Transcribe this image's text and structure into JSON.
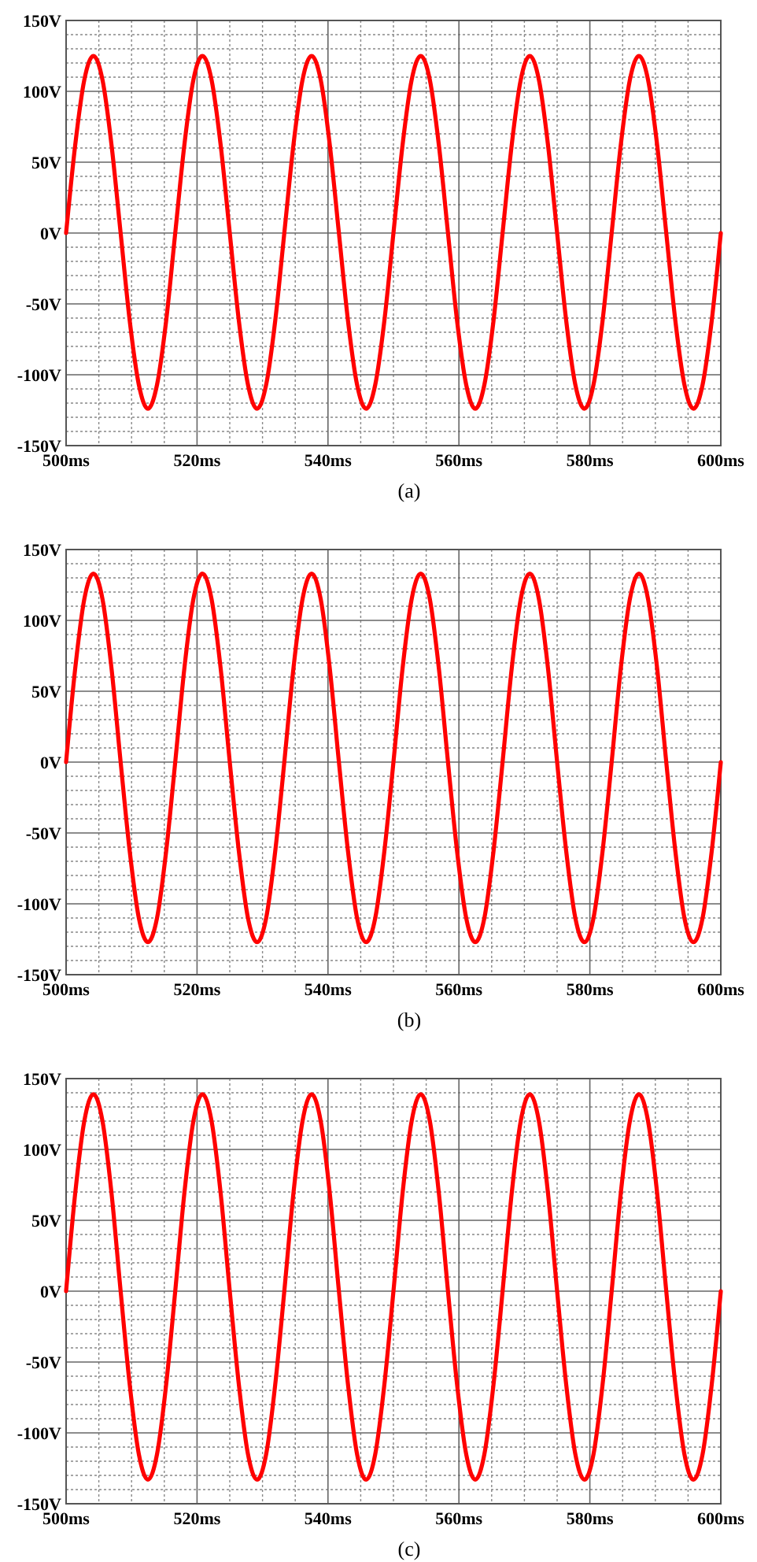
{
  "chart_data": [
    {
      "type": "line",
      "annotations": [
        "(a)"
      ],
      "grid": true,
      "xlim": [
        500,
        600
      ],
      "ylim": [
        -150,
        150
      ],
      "xticks": [
        {
          "value": 500,
          "label": "500ms"
        },
        {
          "value": 520,
          "label": "520ms"
        },
        {
          "value": 540,
          "label": "540ms"
        },
        {
          "value": 560,
          "label": "560ms"
        },
        {
          "value": 580,
          "label": "580ms"
        },
        {
          "value": 600,
          "label": "600ms"
        }
      ],
      "yticks": [
        {
          "value": -150,
          "label": "-150V"
        },
        {
          "value": -100,
          "label": "-100V"
        },
        {
          "value": -50,
          "label": "-50V"
        },
        {
          "value": 0,
          "label": "0V"
        },
        {
          "value": 50,
          "label": "50V"
        },
        {
          "value": 100,
          "label": "100V"
        },
        {
          "value": 150,
          "label": "150V"
        }
      ],
      "x": [
        500,
        501.39,
        502.78,
        504.17,
        505.56,
        506.94,
        508.33,
        509.72,
        511.11,
        512.5,
        513.89,
        515.28,
        516.67,
        518.06,
        519.44,
        520.83,
        522.22,
        523.61,
        525,
        526.39,
        527.78,
        529.17,
        530.56,
        531.94,
        533.33,
        534.72,
        536.11,
        537.5,
        538.89,
        540.28,
        541.67,
        543.06,
        544.44,
        545.83,
        547.22,
        548.61,
        550,
        551.39,
        552.78,
        554.17,
        555.56,
        556.94,
        558.33,
        559.72,
        561.11,
        562.5,
        563.89,
        565.28,
        566.67,
        568.06,
        569.44,
        570.83,
        572.22,
        573.61,
        575,
        576.39,
        577.78,
        579.17,
        580.56,
        581.94,
        583.33,
        584.72,
        586.11,
        587.5,
        588.89,
        590.28,
        591.67,
        593.06,
        594.44,
        595.83,
        597.22,
        598.61,
        600
      ],
      "series": [
        {
          "color": "#ff0000",
          "values": [
            0,
            62,
            108,
            125,
            108,
            62,
            0,
            -62,
            -107,
            -124,
            -107,
            -62,
            0,
            62,
            108,
            125,
            108,
            62,
            0,
            -62,
            -107,
            -124,
            -107,
            -62,
            0,
            62,
            108,
            125,
            108,
            62,
            0,
            -62,
            -107,
            -124,
            -107,
            -62,
            0,
            62,
            108,
            125,
            108,
            62,
            0,
            -62,
            -107,
            -124,
            -107,
            -62,
            0,
            62,
            108,
            125,
            108,
            62,
            0,
            -62,
            -107,
            -124,
            -107,
            -62,
            0,
            62,
            108,
            125,
            108,
            62,
            0,
            -62,
            -107,
            -124,
            -107,
            -62,
            0
          ]
        }
      ]
    },
    {
      "type": "line",
      "annotations": [
        "(b)"
      ],
      "grid": true,
      "xlim": [
        500,
        600
      ],
      "ylim": [
        -150,
        150
      ],
      "xticks": [
        {
          "value": 500,
          "label": "500ms"
        },
        {
          "value": 520,
          "label": "520ms"
        },
        {
          "value": 540,
          "label": "540ms"
        },
        {
          "value": 560,
          "label": "560ms"
        },
        {
          "value": 580,
          "label": "580ms"
        },
        {
          "value": 600,
          "label": "600ms"
        }
      ],
      "yticks": [
        {
          "value": -150,
          "label": "-150V"
        },
        {
          "value": -100,
          "label": "-100V"
        },
        {
          "value": -50,
          "label": "-50V"
        },
        {
          "value": 0,
          "label": "0V"
        },
        {
          "value": 50,
          "label": "50V"
        },
        {
          "value": 100,
          "label": "100V"
        },
        {
          "value": 150,
          "label": "150V"
        }
      ],
      "x": [
        500,
        501.39,
        502.78,
        504.17,
        505.56,
        506.94,
        508.33,
        509.72,
        511.11,
        512.5,
        513.89,
        515.28,
        516.67,
        518.06,
        519.44,
        520.83,
        522.22,
        523.61,
        525,
        526.39,
        527.78,
        529.17,
        530.56,
        531.94,
        533.33,
        534.72,
        536.11,
        537.5,
        538.89,
        540.28,
        541.67,
        543.06,
        544.44,
        545.83,
        547.22,
        548.61,
        550,
        551.39,
        552.78,
        554.17,
        555.56,
        556.94,
        558.33,
        559.72,
        561.11,
        562.5,
        563.89,
        565.28,
        566.67,
        568.06,
        569.44,
        570.83,
        572.22,
        573.61,
        575,
        576.39,
        577.78,
        579.17,
        580.56,
        581.94,
        583.33,
        584.72,
        586.11,
        587.5,
        588.89,
        590.28,
        591.67,
        593.06,
        594.44,
        595.83,
        597.22,
        598.61,
        600
      ],
      "series": [
        {
          "color": "#ff0000",
          "values": [
            0,
            66,
            115,
            133,
            115,
            66,
            0,
            -63,
            -110,
            -127,
            -110,
            -63,
            0,
            66,
            115,
            133,
            115,
            66,
            0,
            -63,
            -110,
            -127,
            -110,
            -63,
            0,
            66,
            115,
            133,
            115,
            66,
            0,
            -63,
            -110,
            -127,
            -110,
            -63,
            0,
            66,
            115,
            133,
            115,
            66,
            0,
            -63,
            -110,
            -127,
            -110,
            -63,
            0,
            66,
            115,
            133,
            115,
            66,
            0,
            -63,
            -110,
            -127,
            -110,
            -63,
            0,
            66,
            115,
            133,
            115,
            66,
            0,
            -63,
            -110,
            -127,
            -110,
            -63,
            0
          ]
        }
      ]
    },
    {
      "type": "line",
      "annotations": [
        "(c)"
      ],
      "grid": true,
      "xlim": [
        500,
        600
      ],
      "ylim": [
        -150,
        150
      ],
      "xticks": [
        {
          "value": 500,
          "label": "500ms"
        },
        {
          "value": 520,
          "label": "520ms"
        },
        {
          "value": 540,
          "label": "540ms"
        },
        {
          "value": 560,
          "label": "560ms"
        },
        {
          "value": 580,
          "label": "580ms"
        },
        {
          "value": 600,
          "label": "600ms"
        }
      ],
      "yticks": [
        {
          "value": -150,
          "label": "-150V"
        },
        {
          "value": -100,
          "label": "-100V"
        },
        {
          "value": -50,
          "label": "-50V"
        },
        {
          "value": 0,
          "label": "0V"
        },
        {
          "value": 50,
          "label": "50V"
        },
        {
          "value": 100,
          "label": "100V"
        },
        {
          "value": 150,
          "label": "150V"
        }
      ],
      "x": [
        500,
        501.39,
        502.78,
        504.17,
        505.56,
        506.94,
        508.33,
        509.72,
        511.11,
        512.5,
        513.89,
        515.28,
        516.67,
        518.06,
        519.44,
        520.83,
        522.22,
        523.61,
        525,
        526.39,
        527.78,
        529.17,
        530.56,
        531.94,
        533.33,
        534.72,
        536.11,
        537.5,
        538.89,
        540.28,
        541.67,
        543.06,
        544.44,
        545.83,
        547.22,
        548.61,
        550,
        551.39,
        552.78,
        554.17,
        555.56,
        556.94,
        558.33,
        559.72,
        561.11,
        562.5,
        563.89,
        565.28,
        566.67,
        568.06,
        569.44,
        570.83,
        572.22,
        573.61,
        575,
        576.39,
        577.78,
        579.17,
        580.56,
        581.94,
        583.33,
        584.72,
        586.11,
        587.5,
        588.89,
        590.28,
        591.67,
        593.06,
        594.44,
        595.83,
        597.22,
        598.61,
        600
      ],
      "series": [
        {
          "color": "#ff0000",
          "values": [
            0,
            69,
            120,
            139,
            120,
            69,
            0,
            -66,
            -115,
            -133,
            -115,
            -66,
            0,
            69,
            120,
            139,
            120,
            69,
            0,
            -66,
            -115,
            -133,
            -115,
            -66,
            0,
            69,
            120,
            139,
            120,
            69,
            0,
            -66,
            -115,
            -133,
            -115,
            -66,
            0,
            69,
            120,
            139,
            120,
            69,
            0,
            -66,
            -115,
            -133,
            -115,
            -66,
            0,
            69,
            120,
            139,
            120,
            69,
            0,
            -66,
            -115,
            -133,
            -115,
            -66,
            0,
            69,
            120,
            139,
            120,
            69,
            0,
            -66,
            -115,
            -133,
            -115,
            -66,
            0
          ]
        }
      ]
    }
  ]
}
